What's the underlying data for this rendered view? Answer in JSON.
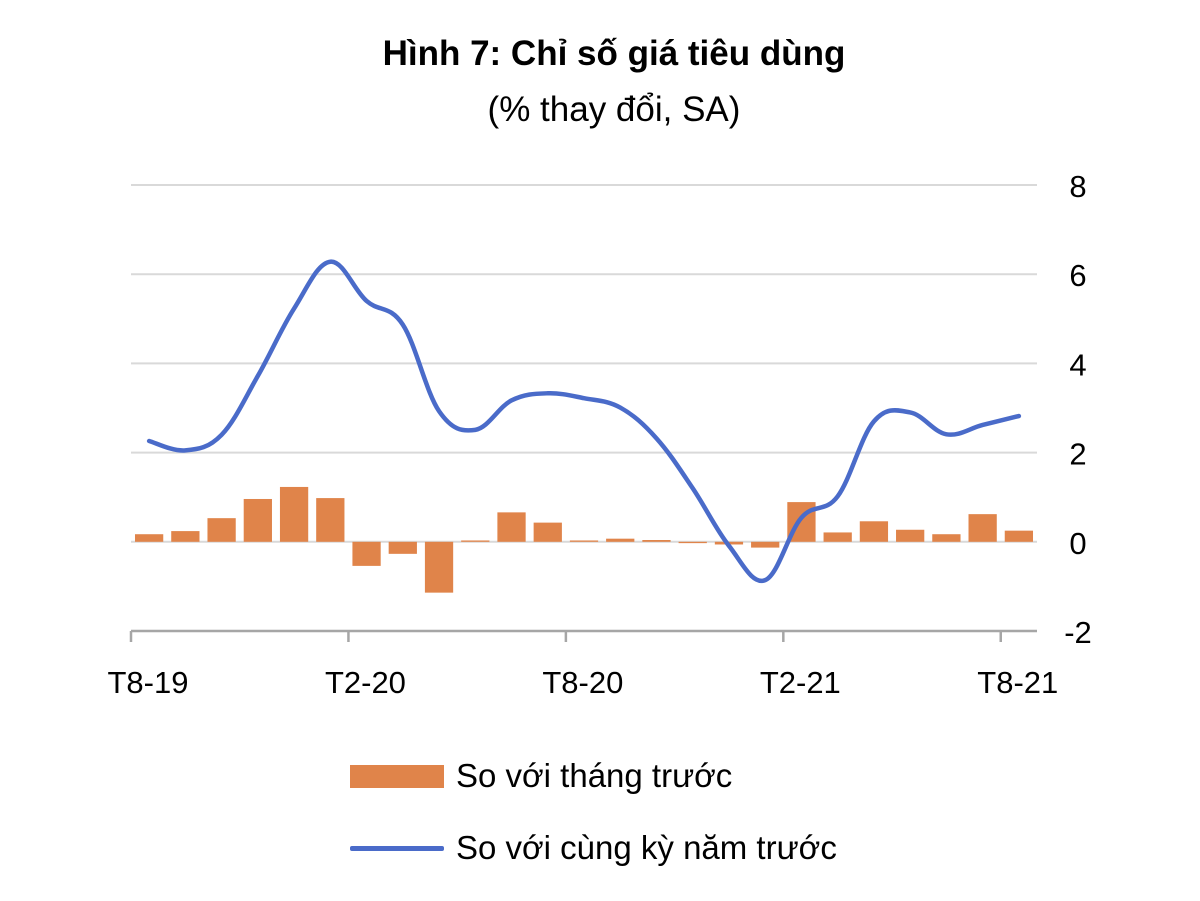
{
  "chart_data": {
    "type": "bar+line",
    "title": "Hình 7: Chỉ số giá tiêu dùng",
    "subtitle": "(% thay đổi, SA)",
    "xlabel": "",
    "ylabel": "",
    "categories": [
      "T8-19",
      "T9-19",
      "T10-19",
      "T11-19",
      "T12-19",
      "T1-20",
      "T2-20",
      "T3-20",
      "T4-20",
      "T5-20",
      "T6-20",
      "T7-20",
      "T8-20",
      "T9-20",
      "T10-20",
      "T11-20",
      "T12-20",
      "T1-21",
      "T2-21",
      "T3-21",
      "T4-21",
      "T5-21",
      "T6-21",
      "T7-21",
      "T8-21"
    ],
    "x_tick_labels": [
      "T8-19",
      "T2-20",
      "T8-20",
      "T2-21",
      "T8-21"
    ],
    "y_tick_labels": [
      "8",
      "6",
      "4",
      "2",
      "0",
      "-2"
    ],
    "ylim": [
      -2,
      8
    ],
    "y_axis_side": "right",
    "grid": true,
    "legend_position": "bottom",
    "colors": {
      "bar": "#E0844A",
      "line": "#4A6BC9",
      "grid": "#D9D9D9",
      "axis": "#A6A6A6"
    },
    "series": [
      {
        "name": "So với tháng trước",
        "type": "bar",
        "values": [
          0.17,
          0.24,
          0.53,
          0.96,
          1.23,
          0.98,
          -0.54,
          -0.27,
          -1.14,
          0.03,
          0.66,
          0.43,
          0.03,
          0.07,
          0.04,
          -0.03,
          -0.06,
          -0.13,
          0.89,
          0.21,
          0.46,
          0.27,
          0.17,
          0.62,
          0.25
        ]
      },
      {
        "name": "So với cùng kỳ năm trước",
        "type": "line",
        "values": [
          2.26,
          2.05,
          2.4,
          3.72,
          5.23,
          6.28,
          5.4,
          4.87,
          2.93,
          2.51,
          3.17,
          3.33,
          3.22,
          3.01,
          2.32,
          1.2,
          -0.09,
          -0.86,
          0.54,
          1.02,
          2.7,
          2.9,
          2.41,
          2.62,
          2.82
        ]
      }
    ]
  }
}
